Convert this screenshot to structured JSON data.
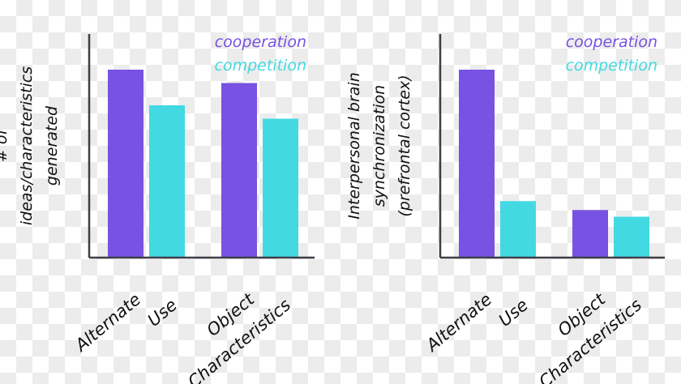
{
  "colors": {
    "cooperation": "#7752e3",
    "competition": "#43d9e2",
    "axis": "#3d3f47"
  },
  "chart_data": [
    {
      "type": "bar",
      "ylabel": "# of ideas/characteristics generated",
      "ylabel_lines": [
        "# of",
        "ideas/characteristics",
        "generated"
      ],
      "categories": [
        "Alternate Use",
        "Object Characteristics"
      ],
      "category_lines": [
        [
          "Alternate",
          "Use"
        ],
        [
          "Object",
          "Characteristics"
        ]
      ],
      "series": [
        {
          "name": "cooperation",
          "values": [
            84,
            78
          ]
        },
        {
          "name": "competition",
          "values": [
            68,
            62
          ]
        }
      ],
      "ylim": [
        0,
        100
      ],
      "legend": "top-right",
      "grid": false
    },
    {
      "type": "bar",
      "ylabel": "Interpersonal brain synchronization (prefrontal cortex)",
      "ylabel_lines": [
        "Interpersonal brain",
        "synchronization",
        "(prefrontal cortex)"
      ],
      "categories": [
        "Alternate Use",
        "Object Characteristics"
      ],
      "category_lines": [
        [
          "Alternate",
          "Use"
        ],
        [
          "Object",
          "Characteristics"
        ]
      ],
      "series": [
        {
          "name": "cooperation",
          "values": [
            84,
            21
          ]
        },
        {
          "name": "competition",
          "values": [
            25,
            18
          ]
        }
      ],
      "ylim": [
        0,
        100
      ],
      "legend": "top-right",
      "grid": false
    }
  ]
}
